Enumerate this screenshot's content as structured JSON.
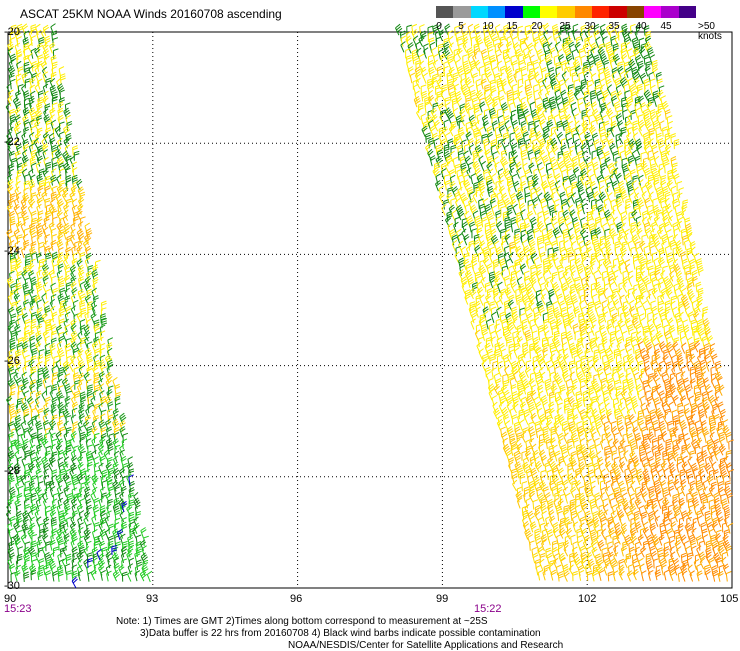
{
  "title": "ASCAT 25KM NOAA Winds 20160708 ascending",
  "lat_labels": [
    "-20",
    "-22",
    "-24",
    "-26",
    "-28",
    "-30"
  ],
  "lon_labels": [
    "90",
    "93",
    "96",
    "99",
    "102",
    "105"
  ],
  "pass_times": [
    "15:23",
    "15:22"
  ],
  "colorbar": {
    "ticks": [
      "0",
      "5",
      "10",
      "15",
      "20",
      "25",
      "30",
      "35",
      "40",
      "45"
    ],
    "end_label": ">50 knots",
    "colors": [
      "#555555",
      "#9a9a9a",
      "#00d8ff",
      "#0090ff",
      "#0000cc",
      "#00ff00",
      "#ffff00",
      "#ffcc00",
      "#ff8800",
      "#ff2200",
      "#cc0000",
      "#884400",
      "#ff00ff",
      "#aa00cc",
      "#440088"
    ]
  },
  "notes": {
    "line1": "Note: 1) Times are GMT 2)Times along bottom correspond to measurement at ~25S",
    "line2": "3)Data buffer is 22 hrs from 20160708 4) Black wind barbs indicate possible contamination",
    "line3": "NOAA/NESDIS/Center for Satellite Applications and Research"
  }
}
